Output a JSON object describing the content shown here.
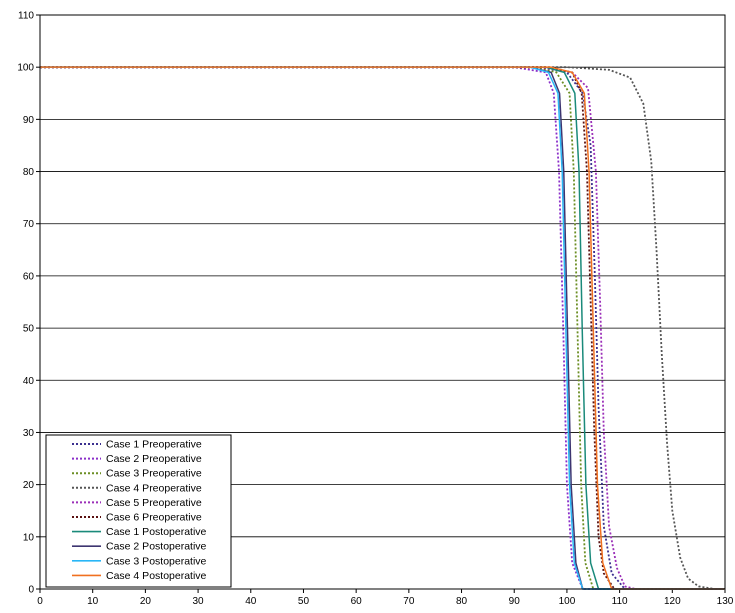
{
  "chart_data": {
    "type": "line",
    "title": "",
    "xlabel": "",
    "ylabel": "",
    "xlim": [
      0,
      130
    ],
    "ylim": [
      0,
      110
    ],
    "xticks": [
      0,
      10,
      20,
      30,
      40,
      50,
      60,
      70,
      80,
      90,
      100,
      110,
      120,
      130
    ],
    "yticks": [
      0,
      10,
      20,
      30,
      40,
      50,
      60,
      70,
      80,
      90,
      100,
      110
    ],
    "grid": "horizontal",
    "legend_position": "bottom-left",
    "series": [
      {
        "name": "Case 1 Preoperative",
        "color": "#3b2f8f",
        "style": "dotted",
        "points": [
          [
            0,
            100
          ],
          [
            95,
            100
          ],
          [
            100,
            99
          ],
          [
            103,
            95
          ],
          [
            104.5,
            85
          ],
          [
            105.3,
            60
          ],
          [
            106,
            35
          ],
          [
            107,
            12
          ],
          [
            108.5,
            3
          ],
          [
            111,
            0
          ],
          [
            130,
            0
          ]
        ]
      },
      {
        "name": "Case 2 Preoperative",
        "color": "#8b2fc9",
        "style": "dotted",
        "points": [
          [
            0,
            100
          ],
          [
            90,
            100
          ],
          [
            96,
            99
          ],
          [
            97.5,
            95
          ],
          [
            98.5,
            80
          ],
          [
            99.3,
            50
          ],
          [
            100,
            20
          ],
          [
            101,
            5
          ],
          [
            103,
            0
          ],
          [
            130,
            0
          ]
        ]
      },
      {
        "name": "Case 3 Preoperative",
        "color": "#6b8e23",
        "style": "dotted",
        "points": [
          [
            0,
            100
          ],
          [
            94,
            100
          ],
          [
            98,
            99
          ],
          [
            100.5,
            95
          ],
          [
            101.3,
            80
          ],
          [
            102,
            50
          ],
          [
            102.7,
            20
          ],
          [
            103.5,
            5
          ],
          [
            105,
            0
          ],
          [
            130,
            0
          ]
        ]
      },
      {
        "name": "Case 4 Preoperative",
        "color": "#555555",
        "style": "dotted",
        "points": [
          [
            0,
            100
          ],
          [
            100,
            100
          ],
          [
            108,
            99.5
          ],
          [
            112,
            98
          ],
          [
            114.5,
            93
          ],
          [
            116,
            82
          ],
          [
            117,
            65
          ],
          [
            118,
            45
          ],
          [
            119,
            28
          ],
          [
            120,
            15
          ],
          [
            121.5,
            6
          ],
          [
            123,
            2
          ],
          [
            125,
            0.5
          ],
          [
            128,
            0
          ],
          [
            130,
            0
          ]
        ]
      },
      {
        "name": "Case 5 Preoperative",
        "color": "#9b2fb8",
        "style": "dotted",
        "points": [
          [
            0,
            100
          ],
          [
            95,
            100
          ],
          [
            101,
            99
          ],
          [
            104,
            96
          ],
          [
            105.5,
            80
          ],
          [
            106.3,
            55
          ],
          [
            107,
            30
          ],
          [
            108,
            12
          ],
          [
            109.5,
            4
          ],
          [
            111,
            0.5
          ],
          [
            113,
            0
          ],
          [
            130,
            0
          ]
        ]
      },
      {
        "name": "Case 6 Preoperative",
        "color": "#5a1010",
        "style": "dotted",
        "points": [
          [
            0,
            100
          ],
          [
            96,
            100
          ],
          [
            101,
            99
          ],
          [
            102.8,
            95
          ],
          [
            103.8,
            80
          ],
          [
            104.5,
            55
          ],
          [
            105.2,
            30
          ],
          [
            106,
            10
          ],
          [
            107,
            3
          ],
          [
            109,
            0
          ],
          [
            130,
            0
          ]
        ]
      },
      {
        "name": "Case 1 Postoperative",
        "color": "#1a8a7a",
        "style": "solid",
        "points": [
          [
            0,
            100
          ],
          [
            96,
            100
          ],
          [
            99.5,
            99
          ],
          [
            101.5,
            95
          ],
          [
            102.3,
            80
          ],
          [
            102.9,
            50
          ],
          [
            103.6,
            20
          ],
          [
            104.5,
            5
          ],
          [
            106,
            0
          ],
          [
            130,
            0
          ]
        ]
      },
      {
        "name": "Case 2 Postoperative",
        "color": "#3d3570",
        "style": "solid",
        "points": [
          [
            0,
            100
          ],
          [
            93,
            100
          ],
          [
            97,
            99
          ],
          [
            98.6,
            95
          ],
          [
            99.4,
            80
          ],
          [
            100.1,
            50
          ],
          [
            100.8,
            20
          ],
          [
            101.7,
            5
          ],
          [
            103,
            0
          ],
          [
            130,
            0
          ]
        ]
      },
      {
        "name": "Case 3 Postoperative",
        "color": "#29b6f6",
        "style": "solid",
        "points": [
          [
            0,
            100
          ],
          [
            93,
            100
          ],
          [
            96.5,
            99
          ],
          [
            98.3,
            95
          ],
          [
            99.1,
            80
          ],
          [
            99.8,
            50
          ],
          [
            100.5,
            20
          ],
          [
            101.4,
            5
          ],
          [
            103,
            0
          ],
          [
            130,
            0
          ]
        ]
      },
      {
        "name": "Case 4 Postoperative",
        "color": "#f07020",
        "style": "solid",
        "points": [
          [
            0,
            100
          ],
          [
            97,
            100
          ],
          [
            101,
            99
          ],
          [
            103.3,
            95
          ],
          [
            104.2,
            80
          ],
          [
            105,
            50
          ],
          [
            105.8,
            20
          ],
          [
            106.8,
            5
          ],
          [
            108.5,
            0
          ],
          [
            130,
            0
          ]
        ]
      }
    ]
  }
}
